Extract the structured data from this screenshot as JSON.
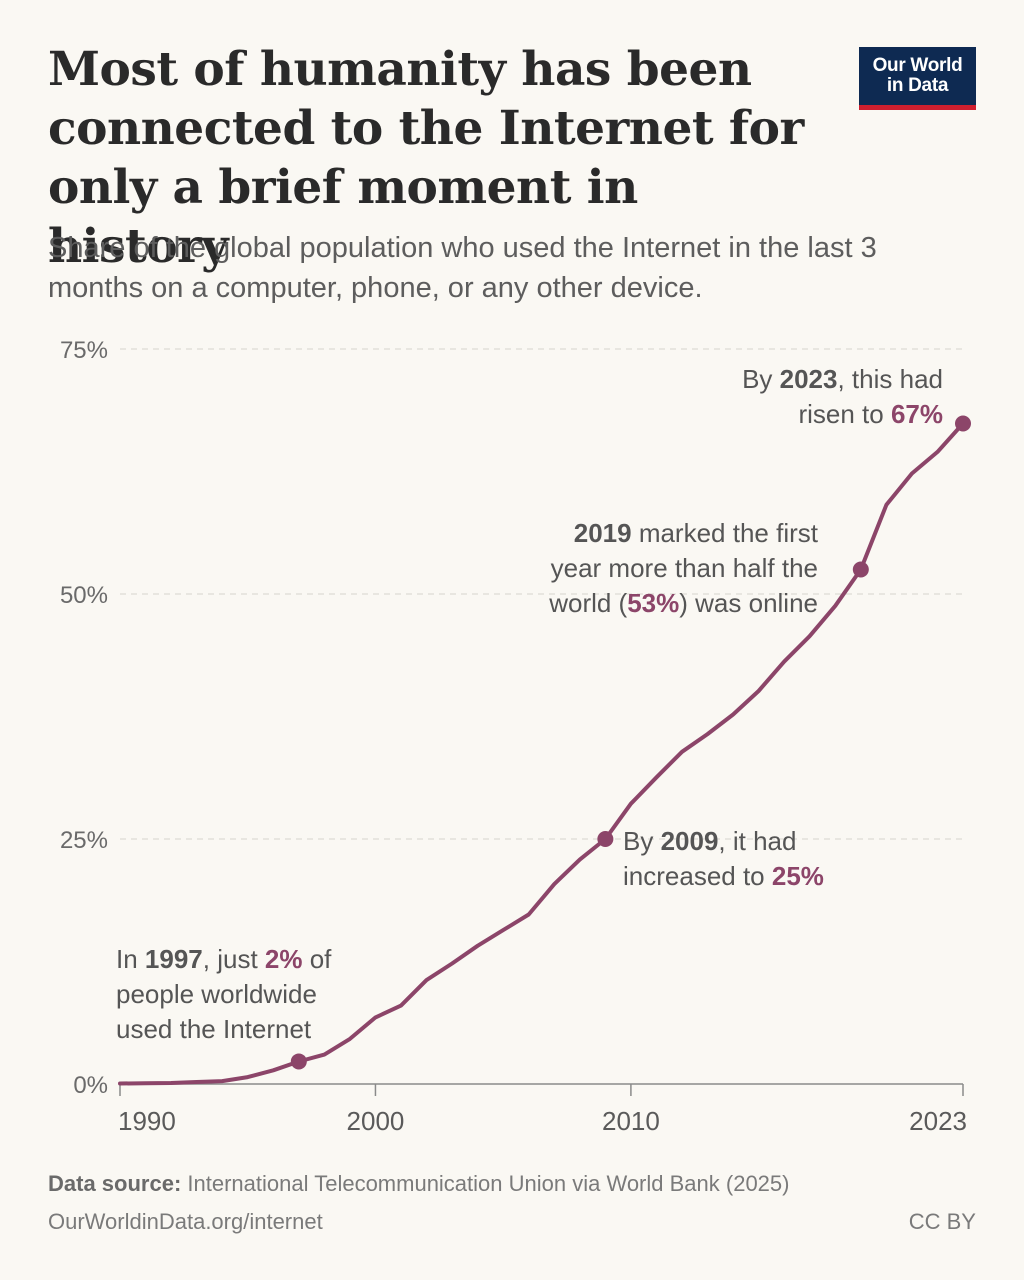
{
  "header": {
    "title": "Most of humanity has been connected to the Internet for only a brief moment in history",
    "subtitle": "Share of the global population who used the Internet in the last 3 months on a computer, phone, or any other device.",
    "logo_line1": "Our World",
    "logo_line2": "in Data"
  },
  "footer": {
    "source_label": "Data source:",
    "source_text": "International Telecommunication Union via World Bank (2025)",
    "url": "OurWorldinData.org/internet",
    "license": "CC BY"
  },
  "colors": {
    "line": "#8c4569",
    "accent_text": "#8c4569",
    "grid": "#dedbd4",
    "axis": "#8a8a8a"
  },
  "chart_data": {
    "type": "line",
    "title": "Most of humanity has been connected to the Internet for only a brief moment in history",
    "subtitle": "Share of the global population who used the Internet in the last 3 months on a computer, phone, or any other device.",
    "xlabel": "",
    "ylabel": "",
    "xlim": [
      1990,
      2023
    ],
    "ylim": [
      0,
      75
    ],
    "grid": true,
    "x_ticks": [
      1990,
      2000,
      2010,
      2023
    ],
    "y_ticks": [
      0,
      25,
      50,
      75
    ],
    "y_tick_labels": [
      "0%",
      "25%",
      "50%",
      "75%"
    ],
    "series": [
      {
        "x": [
          1990,
          1991,
          1992,
          1993,
          1994,
          1995,
          1996,
          1997,
          1998,
          1999,
          2000,
          2001,
          2002,
          2003,
          2004,
          2005,
          2006,
          2007,
          2008,
          2009,
          2010,
          2011,
          2012,
          2013,
          2014,
          2015,
          2016,
          2017,
          2018,
          2019,
          2020,
          2021,
          2022,
          2023
        ],
        "values": [
          0.05,
          0.07,
          0.1,
          0.2,
          0.3,
          0.7,
          1.4,
          2.3,
          3.0,
          4.6,
          6.8,
          8.0,
          10.6,
          12.3,
          14.1,
          15.7,
          17.3,
          20.4,
          22.9,
          25.0,
          28.6,
          31.3,
          33.9,
          35.7,
          37.7,
          40.1,
          43.1,
          45.7,
          48.8,
          52.5,
          59.1,
          62.3,
          64.5,
          67.4
        ]
      }
    ],
    "highlighted_points": [
      {
        "x": 1997,
        "y": 2.3
      },
      {
        "x": 2009,
        "y": 25.0
      },
      {
        "x": 2019,
        "y": 52.5
      },
      {
        "x": 2023,
        "y": 67.4
      }
    ],
    "annotations": [
      {
        "lines": [
          [
            {
              "t": "In "
            },
            {
              "t": "1997",
              "b": true
            },
            {
              "t": ", just "
            },
            {
              "t": "2%",
              "b": true,
              "accent": true
            },
            {
              "t": " of"
            }
          ],
          [
            {
              "t": "people worldwide"
            }
          ],
          [
            {
              "t": "used the Internet"
            }
          ]
        ]
      },
      {
        "lines": [
          [
            {
              "t": "By "
            },
            {
              "t": "2009",
              "b": true
            },
            {
              "t": ", it had"
            }
          ],
          [
            {
              "t": "increased to "
            },
            {
              "t": "25%",
              "b": true,
              "accent": true
            }
          ]
        ]
      },
      {
        "lines": [
          [
            {
              "t": "2019",
              "b": true
            },
            {
              "t": " marked the first"
            }
          ],
          [
            {
              "t": "year more than half the"
            }
          ],
          [
            {
              "t": "world ("
            },
            {
              "t": "53%",
              "b": true,
              "accent": true
            },
            {
              "t": ") was online"
            }
          ]
        ]
      },
      {
        "lines": [
          [
            {
              "t": "By "
            },
            {
              "t": "2023",
              "b": true
            },
            {
              "t": ", this had"
            }
          ],
          [
            {
              "t": "risen to "
            },
            {
              "t": "67%",
              "b": true,
              "accent": true
            }
          ]
        ]
      }
    ]
  }
}
